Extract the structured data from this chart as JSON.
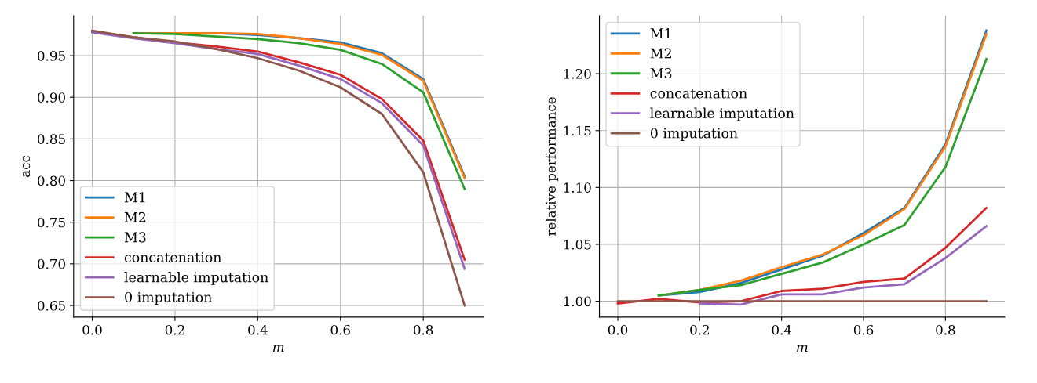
{
  "chart_data": [
    {
      "type": "line",
      "xlabel": "m",
      "ylabel": "acc",
      "xlim": [
        -0.045,
        0.945
      ],
      "ylim": [
        0.636,
        0.998
      ],
      "xticks": [
        {
          "value": 0,
          "label": "0.0"
        },
        0.2,
        0.4,
        0.6,
        0.8
      ],
      "yticks": [
        {
          "value": 0.65,
          "label": "0.65"
        },
        {
          "value": 0.7,
          "label": "0.70"
        },
        {
          "value": 0.75,
          "label": "0.75"
        },
        {
          "value": 0.8,
          "label": "0.80"
        },
        {
          "value": 0.85,
          "label": "0.85"
        },
        {
          "value": 0.9,
          "label": "0.90"
        },
        {
          "value": 0.95,
          "label": "0.95"
        }
      ],
      "grid": true,
      "legend": "bottom left",
      "series": [
        {
          "name": "M1",
          "color": "#1f77b4",
          "x": [
            0.1,
            0.2,
            0.3,
            0.4,
            0.5,
            0.6,
            0.7,
            0.8,
            0.9
          ],
          "values": [
            0.977,
            0.977,
            0.977,
            0.975,
            0.971,
            0.966,
            0.953,
            0.922,
            0.805
          ]
        },
        {
          "name": "M2",
          "color": "#ff7f0e",
          "x": [
            0.1,
            0.2,
            0.3,
            0.4,
            0.5,
            0.6,
            0.7,
            0.8,
            0.9
          ],
          "values": [
            0.977,
            0.977,
            0.977,
            0.976,
            0.971,
            0.964,
            0.951,
            0.92,
            0.803
          ]
        },
        {
          "name": "M3",
          "color": "#2ca02c",
          "x": [
            0.1,
            0.2,
            0.3,
            0.4,
            0.5,
            0.6,
            0.7,
            0.8,
            0.9
          ],
          "values": [
            0.977,
            0.976,
            0.973,
            0.97,
            0.965,
            0.957,
            0.94,
            0.906,
            0.79
          ]
        },
        {
          "name": "concatenation",
          "color": "#d62728",
          "x": [
            0,
            0.1,
            0.2,
            0.3,
            0.4,
            0.5,
            0.6,
            0.7,
            0.8,
            0.9
          ],
          "values": [
            0.979,
            0.972,
            0.966,
            0.961,
            0.955,
            0.942,
            0.927,
            0.898,
            0.848,
            0.705
          ]
        },
        {
          "name": "learnable imputation",
          "color": "#9467bd",
          "x": [
            0,
            0.1,
            0.2,
            0.3,
            0.4,
            0.5,
            0.6,
            0.7,
            0.8,
            0.9
          ],
          "values": [
            0.978,
            0.971,
            0.965,
            0.958,
            0.952,
            0.938,
            0.922,
            0.893,
            0.842,
            0.694
          ]
        },
        {
          "name": "0 imputation",
          "color": "#8c564b",
          "x": [
            0,
            0.1,
            0.2,
            0.3,
            0.4,
            0.5,
            0.6,
            0.7,
            0.8,
            0.9
          ],
          "values": [
            0.98,
            0.972,
            0.967,
            0.958,
            0.947,
            0.932,
            0.912,
            0.88,
            0.81,
            0.65
          ]
        }
      ]
    },
    {
      "type": "line",
      "xlabel": "m",
      "ylabel": "relative performance",
      "xlim": [
        -0.045,
        0.945
      ],
      "ylim": [
        0.986,
        1.251
      ],
      "xticks": [
        {
          "value": 0,
          "label": "0.0"
        },
        0.2,
        0.4,
        0.6,
        0.8
      ],
      "yticks": [
        {
          "value": 1.0,
          "label": "1.00"
        },
        {
          "value": 1.05,
          "label": "1.05"
        },
        {
          "value": 1.1,
          "label": "1.10"
        },
        {
          "value": 1.15,
          "label": "1.15"
        },
        {
          "value": 1.2,
          "label": "1.20"
        }
      ],
      "grid": true,
      "legend": "top left",
      "series": [
        {
          "name": "M1",
          "color": "#1f77b4",
          "x": [
            0.1,
            0.2,
            0.3,
            0.4,
            0.5,
            0.6,
            0.7,
            0.8,
            0.9
          ],
          "values": [
            1.005,
            1.008,
            1.016,
            1.028,
            1.04,
            1.06,
            1.082,
            1.138,
            1.238
          ]
        },
        {
          "name": "M2",
          "color": "#ff7f0e",
          "x": [
            0.1,
            0.2,
            0.3,
            0.4,
            0.5,
            0.6,
            0.7,
            0.8,
            0.9
          ],
          "values": [
            1.005,
            1.01,
            1.018,
            1.03,
            1.041,
            1.058,
            1.081,
            1.136,
            1.235
          ]
        },
        {
          "name": "M3",
          "color": "#2ca02c",
          "x": [
            0.1,
            0.2,
            0.3,
            0.4,
            0.5,
            0.6,
            0.7,
            0.8,
            0.9
          ],
          "values": [
            1.005,
            1.01,
            1.014,
            1.024,
            1.034,
            1.05,
            1.067,
            1.118,
            1.213
          ]
        },
        {
          "name": "concatenation",
          "color": "#d62728",
          "x": [
            0,
            0.1,
            0.2,
            0.3,
            0.4,
            0.5,
            0.6,
            0.7,
            0.8,
            0.9
          ],
          "values": [
            0.998,
            1.002,
            0.999,
            1.0,
            1.009,
            1.011,
            1.017,
            1.02,
            1.047,
            1.082
          ]
        },
        {
          "name": "learnable imputation",
          "color": "#9467bd",
          "x": [
            0.2,
            0.3,
            0.4,
            0.5,
            0.6,
            0.7,
            0.8,
            0.9
          ],
          "values": [
            0.998,
            0.997,
            1.006,
            1.006,
            1.012,
            1.015,
            1.038,
            1.066
          ]
        },
        {
          "name": "0 imputation",
          "color": "#8c564b",
          "x": [
            0,
            0.1,
            0.2,
            0.3,
            0.4,
            0.5,
            0.6,
            0.7,
            0.8,
            0.9
          ],
          "values": [
            1.0,
            1.0,
            1.0,
            1.0,
            1.0,
            1.0,
            1.0,
            1.0,
            1.0,
            1.0
          ]
        }
      ]
    }
  ]
}
